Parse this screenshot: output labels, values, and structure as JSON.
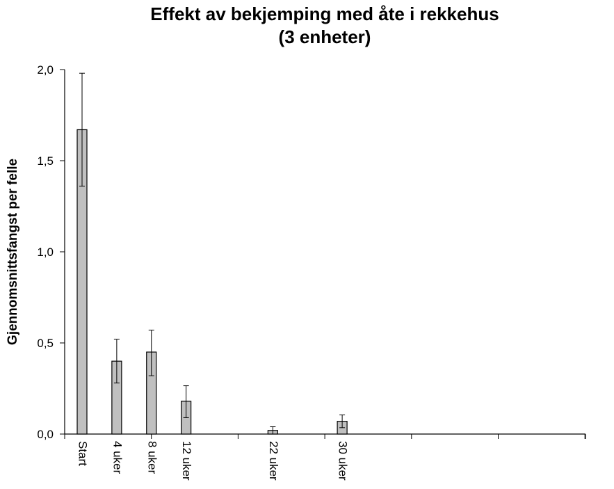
{
  "chart_data": {
    "type": "bar",
    "title": [
      "Effekt av bekjemping med åte i rekkehus",
      "(3 enheter)"
    ],
    "xlabel": "",
    "ylabel": "Gjennomsnittsfangst per felle",
    "ylim": [
      0,
      2.0
    ],
    "yticks": [
      "0,0",
      "0,5",
      "1,0",
      "1,5",
      "2,0"
    ],
    "ytick_values": [
      0,
      0.5,
      1.0,
      1.5,
      2.0
    ],
    "x_weeks": [
      0,
      4,
      8,
      12,
      22,
      30
    ],
    "categories": [
      "Start",
      "4 uker",
      "8 uker",
      "12 uker",
      "22 uker",
      "30 uker"
    ],
    "values": [
      1.67,
      0.4,
      0.45,
      0.18,
      0.02,
      0.07
    ],
    "error_upper": [
      1.98,
      0.52,
      0.57,
      0.265,
      0.04,
      0.105
    ],
    "error_lower": [
      1.36,
      0.28,
      0.32,
      0.09,
      0.0,
      0.035
    ],
    "x_major_ticks_weeks": [
      0,
      10,
      20,
      30,
      40,
      50,
      60
    ],
    "grid": false,
    "legend": "none",
    "bar_color": "#c0c0c0",
    "bar_edge_color": "#000000"
  }
}
